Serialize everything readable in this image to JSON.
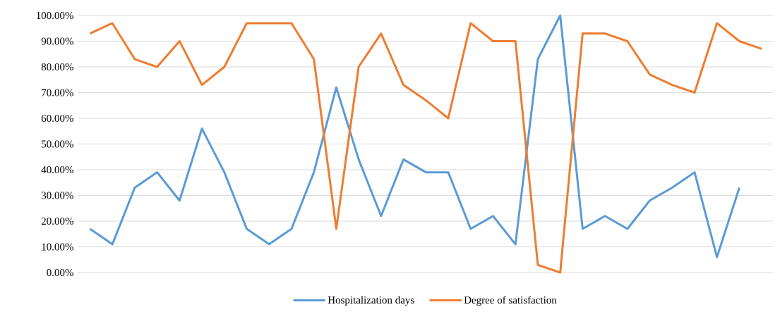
{
  "chart_data": {
    "type": "line",
    "categories": [
      null,
      null,
      null,
      null,
      null,
      null,
      null,
      null,
      null,
      null,
      null,
      null,
      null,
      null,
      null,
      null,
      null,
      null,
      null,
      null,
      null,
      null,
      null,
      null,
      null,
      null,
      null,
      null,
      null,
      null,
      null
    ],
    "series": [
      {
        "name": "Hospitalization days",
        "color": "#5b9bd5",
        "values": [
          17,
          11,
          33,
          39,
          28,
          56,
          39,
          17,
          11,
          17,
          39,
          72,
          44,
          22,
          44,
          39,
          39,
          17,
          22,
          11,
          83,
          100,
          17,
          22,
          17,
          28,
          33,
          39,
          6,
          33,
          null
        ]
      },
      {
        "name": "Degree of satisfaction",
        "color": "#ed7d31",
        "values": [
          93,
          97,
          83,
          80,
          90,
          73,
          80,
          97,
          97,
          97,
          83,
          17,
          80,
          93,
          73,
          67,
          60,
          97,
          90,
          90,
          3,
          0,
          93,
          93,
          90,
          77,
          73,
          70,
          97,
          90,
          87
        ]
      }
    ],
    "ylim": [
      0,
      100
    ],
    "yticks": [
      {
        "value": 0,
        "label": "0.00%"
      },
      {
        "value": 10,
        "label": "10.00%"
      },
      {
        "value": 20,
        "label": "20.00%"
      },
      {
        "value": 30,
        "label": "30.00%"
      },
      {
        "value": 40,
        "label": "40.00%"
      },
      {
        "value": 50,
        "label": "50.00%"
      },
      {
        "value": 60,
        "label": "60.00%"
      },
      {
        "value": 70,
        "label": "70.00%"
      },
      {
        "value": 80,
        "label": "80.00%"
      },
      {
        "value": 90,
        "label": "90.00%"
      },
      {
        "value": 100,
        "label": "100.00%"
      }
    ],
    "grid": "y",
    "legend": "bottom"
  }
}
